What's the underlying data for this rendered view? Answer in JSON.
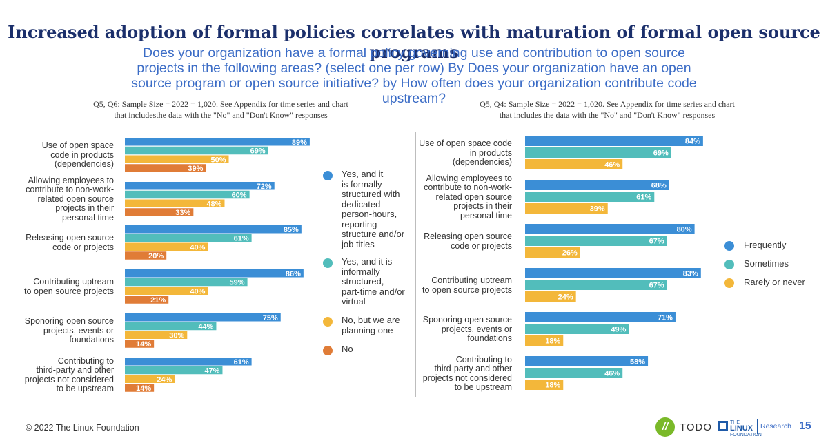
{
  "header": {
    "title": "Increased adoption of formal policies correlates with maturation of formal open source programs",
    "subtitle": "Does your organization have a formal policy governing use and contribution to open source projects in the following areas? (select one per row) By Does your organization have an open source program or open source initiative? by How often does your organization contribute code upstream?"
  },
  "left_note": {
    "line1": "Q5, Q6: Sample Size = 2022 = 1,020. See Appendix for time series and chart",
    "line2": "that includesthe data with the \"No\" and \"Don't Know\" responses"
  },
  "right_note": {
    "line1": "Q5, Q4: Sample Size = 2022 = 1,020. See Appendix for time series and chart",
    "line2": "that includes the data with the \"No\" and \"Don't Know\" responses"
  },
  "colors": {
    "blue": "#3b8ed6",
    "teal": "#52bdbb",
    "yellow": "#f3b73a",
    "orange": "#e07c37",
    "title": "#1b2f6b",
    "subtitle": "#3b6cc6"
  },
  "left_legend": [
    {
      "label": "Yes, and it is formally structured with dedicated person-hours, reporting structure and/or job titles",
      "color": "#3b8ed6"
    },
    {
      "label": "Yes, and it is informally structured, part-time and/or virtual",
      "color": "#52bdbb"
    },
    {
      "label": "No, but we are planning one",
      "color": "#f3b73a"
    },
    {
      "label": "No",
      "color": "#e07c37"
    }
  ],
  "right_legend": [
    {
      "label": "Frequently",
      "color": "#3b8ed6"
    },
    {
      "label": "Sometimes",
      "color": "#52bdbb"
    },
    {
      "label": "Rarely or never",
      "color": "#f3b73a"
    }
  ],
  "chart_data": [
    {
      "type": "bar",
      "orientation": "horizontal",
      "categories": [
        "Use of open space code in products (dependencies)",
        "Allowing employees to contribute to non-work-related open source projects in their personal time",
        "Releasing open source code or projects",
        "Contributing uptream to open source projects",
        "Sponoring open source projects, events or foundations",
        "Contributing to third-party and other projects not considered to be upstream"
      ],
      "series": [
        {
          "name": "Yes, and it is formally structured with dedicated person-hours, reporting structure and/or job titles",
          "values": [
            89,
            72,
            85,
            86,
            75,
            61
          ]
        },
        {
          "name": "Yes, and it is informally structured, part-time and/or virtual",
          "values": [
            69,
            60,
            61,
            59,
            44,
            47
          ]
        },
        {
          "name": "No, but we are planning one",
          "values": [
            50,
            48,
            40,
            40,
            30,
            24
          ]
        },
        {
          "name": "No",
          "values": [
            39,
            33,
            20,
            21,
            14,
            14
          ]
        }
      ],
      "value_format": "%",
      "xlim": [
        0,
        100
      ]
    },
    {
      "type": "bar",
      "orientation": "horizontal",
      "categories": [
        "Use of open space code in products (dependencies)",
        "Allowing employees to contribute to non-work-related open source projects in their personal time",
        "Releasing open source code or projects",
        "Contributing uptream to open source projects",
        "Sponoring open source projects, events or foundations",
        "Contributing to third-party and other projects not considered to be upstream"
      ],
      "series": [
        {
          "name": "Frequently",
          "values": [
            84,
            68,
            80,
            83,
            71,
            58
          ]
        },
        {
          "name": "Sometimes",
          "values": [
            69,
            61,
            67,
            67,
            49,
            46
          ]
        },
        {
          "name": "Rarely or never",
          "values": [
            46,
            39,
            26,
            24,
            18,
            18
          ]
        }
      ],
      "value_format": "%",
      "xlim": [
        0,
        100
      ]
    }
  ],
  "left_labels": [
    [
      "Use of open space",
      "code in products",
      "(dependencies)"
    ],
    [
      "Allowing employees to",
      "contribute to non-work-",
      "related open source",
      "projects in their",
      "personal time"
    ],
    [
      "Releasing open source",
      "code or projects"
    ],
    [
      "Contributing uptream",
      "to open source projects"
    ],
    [
      "Sponoring open source",
      "projects, events or",
      "foundations"
    ],
    [
      "Contributing to",
      "third-party and other",
      "projects not considered",
      "to be upstream"
    ]
  ],
  "right_labels": [
    [
      "Use of open space code",
      "in products",
      "(dependencies)"
    ],
    [
      "Allowing employees to",
      "contribute to non-work-",
      "related open source",
      "projects in their",
      "personal time"
    ],
    [
      "Releasing open source",
      "code or projects"
    ],
    [
      "Contributing uptream",
      "to open source projects"
    ],
    [
      "Sponoring open source",
      "projects, events or",
      "foundations"
    ],
    [
      "Contributing to",
      "third-party and other",
      "projects not considered",
      "to be upstream"
    ]
  ],
  "left_legend_lines": [
    [
      "Yes, and it",
      "is formally",
      "structured with",
      "dedicated",
      "person-hours,",
      "reporting",
      "structure and/or",
      "job titles"
    ],
    [
      "Yes, and it is",
      "informally",
      "structured,",
      "part-time and/or",
      "virtual"
    ],
    [
      "No, but we are",
      "planning one"
    ],
    [
      "No"
    ]
  ],
  "footer": {
    "copyright": "© 2022 The Linux Foundation",
    "todo_mark": "//",
    "todo_text": "TODO",
    "lf_small": "THE",
    "lf_big": "LINUX",
    "lf_small2": "FOUNDATION",
    "research": "Research",
    "page_number": "15"
  }
}
